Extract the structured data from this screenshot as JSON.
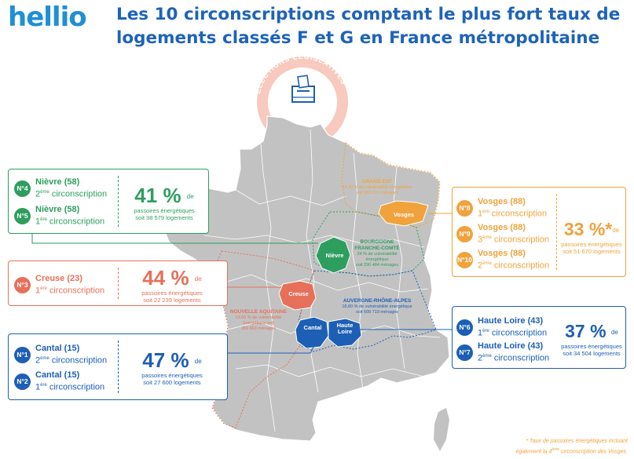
{
  "header": {
    "logo": "hellio",
    "title": "Les 10 circonscriptions comptant le plus fort taux de logements classés F et G en France métropolitaine"
  },
  "seal": {
    "text": "ÉLECTIONS LÉGISLATIVES",
    "icon": "ballot-box-icon"
  },
  "colors": {
    "green": "#2e9e5f",
    "salmon": "#e7705a",
    "orange": "#f0a23c",
    "blue": "#1d5fb5",
    "title": "#1e63b9",
    "map_fill": "#c2c2c2"
  },
  "regions": {
    "grand_est": {
      "name": "GRAND EST",
      "line1": "24,30 % de vulnérabilité énergétique",
      "line2": "soit 553 011 ménages"
    },
    "bourgogne": {
      "name1": "BOURGOGNE",
      "name2": "FRANCHE-COMTÉ",
      "line1": "24 % de vulnérabilité",
      "line2": "énergétique",
      "line3": "soit 290 484 ménages"
    },
    "auvergne": {
      "name": "AUVERGNE-RHÔNE-ALPES",
      "line1": "18,60 % de vulnérabilité énergétique",
      "line2": "soit 609 719 ménages"
    },
    "nouvelle_aquitaine": {
      "name": "NOUVELLE AQUITAINE",
      "line1": "13,60 % de vulnérabilité",
      "line2": "énergétique soit",
      "line3": "355 663 ménages"
    }
  },
  "map_labels": {
    "vosges": "Vosges",
    "nievre": "Nièvre",
    "creuse": "Creuse",
    "cantal": "Cantal",
    "haute_loire_1": "Haute",
    "haute_loire_2": "Loire"
  },
  "cards": {
    "nievre": {
      "rows": [
        {
          "badge": "N°4",
          "name": "Nièvre (58)",
          "circ_num": "2",
          "circ_sup": "ème",
          "circ_text": " circonscription"
        },
        {
          "badge": "N°5",
          "name": "Nièvre (58)",
          "circ_num": "1",
          "circ_sup": "ère",
          "circ_text": " circonscription"
        }
      ],
      "pct": "41 %",
      "de": "de",
      "line1": "passoires énergétiques",
      "line2": "soit 38 579 logements"
    },
    "creuse": {
      "rows": [
        {
          "badge": "N°3",
          "name": "Creuse (23)",
          "circ_num": "1",
          "circ_sup": "ère",
          "circ_text": " circonscription"
        }
      ],
      "pct": "44 %",
      "de": "de",
      "line1": "passoires énergétiques",
      "line2": "soit 22 239 logements"
    },
    "cantal": {
      "rows": [
        {
          "badge": "N°1",
          "name": "Cantal (15)",
          "circ_num": "2",
          "circ_sup": "ème",
          "circ_text": " circonscription"
        },
        {
          "badge": "N°2",
          "name": "Cantal (15)",
          "circ_num": "1",
          "circ_sup": "ère",
          "circ_text": " circonscription"
        }
      ],
      "pct": "47 %",
      "de": "de",
      "line1": "passoires énergétiques",
      "line2": "soit 27 600 logements"
    },
    "vosges": {
      "rows": [
        {
          "badge": "N°8",
          "name": "Vosges (88)",
          "circ_num": "1",
          "circ_sup": "ère",
          "circ_text": " circonscription"
        },
        {
          "badge": "N°9",
          "name": "Vosges (88)",
          "circ_num": "3",
          "circ_sup": "ème",
          "circ_text": " circonscription"
        },
        {
          "badge": "N°10",
          "name": "Vosges (88)",
          "circ_num": "2",
          "circ_sup": "ème",
          "circ_text": " circonscription"
        }
      ],
      "pct": "33 %*",
      "de": "de",
      "line1": "passoires énergétiques",
      "line2": "soit 51 670 logements"
    },
    "haute_loire": {
      "rows": [
        {
          "badge": "N°6",
          "name": "Haute Loire (43)",
          "circ_num": "1",
          "circ_sup": "ère",
          "circ_text": " circonscription"
        },
        {
          "badge": "N°7",
          "name": "Haute Loire (43)",
          "circ_num": "2",
          "circ_sup": "ème",
          "circ_text": " circonscription"
        }
      ],
      "pct": "37 %",
      "de": "de",
      "line1": "passoires énergétiques",
      "line2": "soit 34 504 logements"
    }
  },
  "footnote": {
    "line1": "* Taux de passoires énergétiques incluant",
    "line2a": "également la 4",
    "line2sup": "ème",
    "line2b": " circonscription des Vosges."
  }
}
